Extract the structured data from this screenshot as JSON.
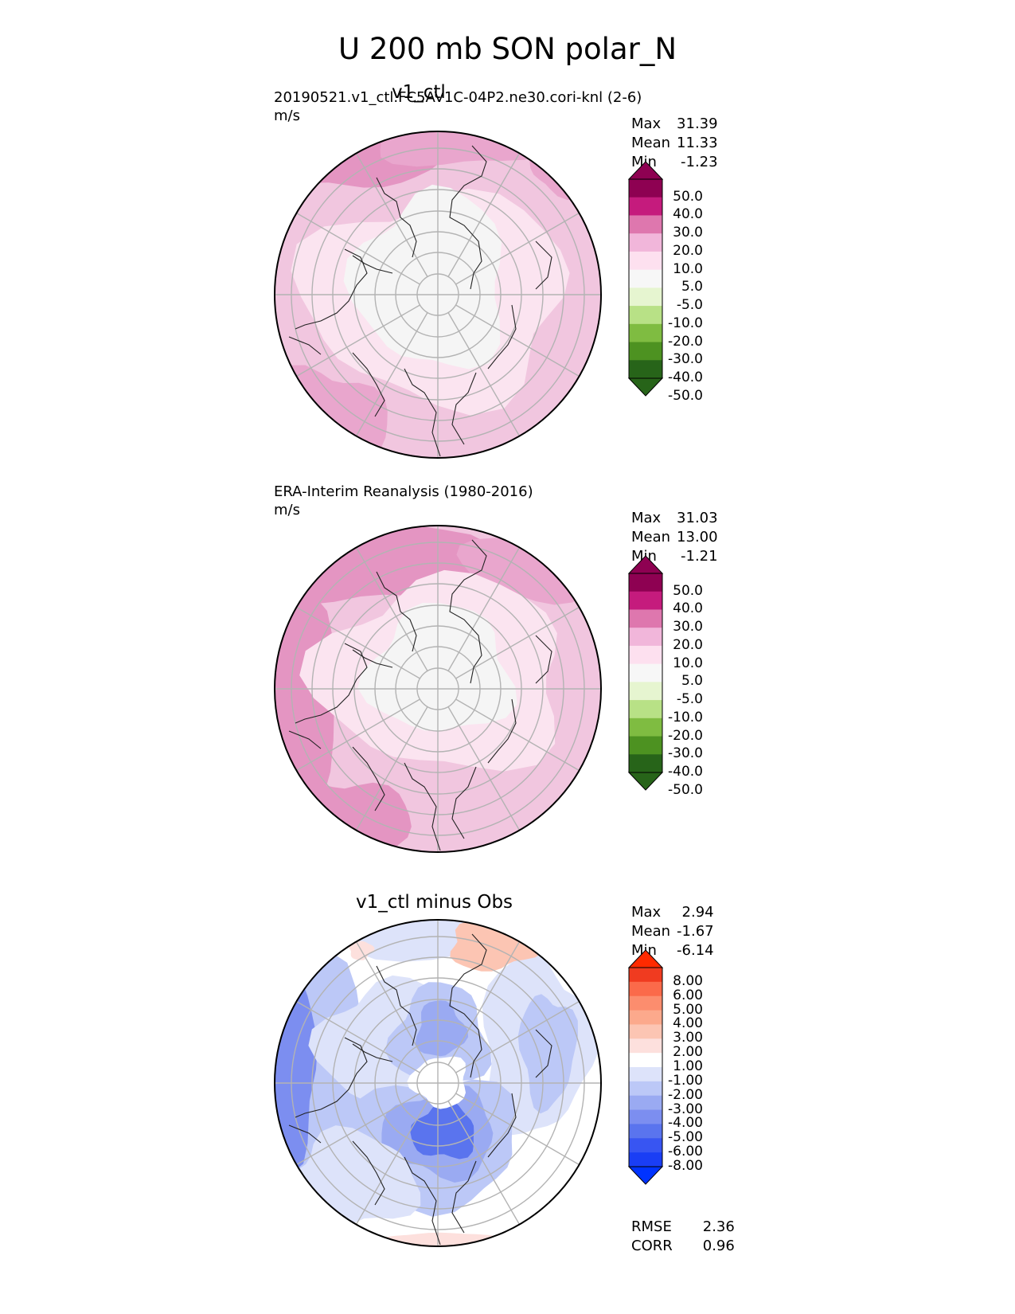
{
  "figure_title": "U 200 mb SON polar_N",
  "chart_data": [
    {
      "type": "polar-contour",
      "title": "v1_ctl",
      "subtitle": "20190521.v1_ctl.FC5AV1C-04P2.ne30.cori-knl (2-6)",
      "units": "m/s",
      "stats": [
        {
          "label": "Max",
          "value": "31.39"
        },
        {
          "label": "Mean",
          "value": "11.33"
        },
        {
          "label": "Min",
          "value": "-1.23"
        }
      ],
      "colorbar_levels": [
        "50.0",
        "40.0",
        "30.0",
        "20.0",
        "10.0",
        "5.0",
        "-5.0",
        "-10.0",
        "-20.0",
        "-30.0",
        "-40.0",
        "-50.0"
      ],
      "colorbar_colors": [
        "#8e0152",
        "#c51b7d",
        "#de77ae",
        "#f1b6da",
        "#fde0ef",
        "#f7f7f7",
        "#e6f5d0",
        "#b8e186",
        "#7fbc41",
        "#4d9221",
        "#276419"
      ],
      "extend_colors": {
        "max": "#8e0152",
        "min": "#276419"
      }
    },
    {
      "type": "polar-contour",
      "title": "",
      "subtitle": "ERA-Interim Reanalysis (1980-2016)",
      "units": "m/s",
      "stats": [
        {
          "label": "Max",
          "value": "31.03"
        },
        {
          "label": "Mean",
          "value": "13.00"
        },
        {
          "label": "Min",
          "value": "-1.21"
        }
      ],
      "colorbar_levels": [
        "50.0",
        "40.0",
        "30.0",
        "20.0",
        "10.0",
        "5.0",
        "-5.0",
        "-10.0",
        "-20.0",
        "-30.0",
        "-40.0",
        "-50.0"
      ],
      "colorbar_colors": [
        "#8e0152",
        "#c51b7d",
        "#de77ae",
        "#f1b6da",
        "#fde0ef",
        "#f7f7f7",
        "#e6f5d0",
        "#b8e186",
        "#7fbc41",
        "#4d9221",
        "#276419"
      ],
      "extend_colors": {
        "max": "#8e0152",
        "min": "#276419"
      }
    },
    {
      "type": "polar-contour",
      "title": "v1_ctl minus Obs",
      "subtitle": "",
      "units": "",
      "stats": [
        {
          "label": "Max",
          "value": "2.94"
        },
        {
          "label": "Mean",
          "value": "-1.67"
        },
        {
          "label": "Min",
          "value": "-6.14"
        }
      ],
      "colorbar_levels": [
        "8.00",
        "6.00",
        "5.00",
        "4.00",
        "3.00",
        "2.00",
        "1.00",
        "-1.00",
        "-2.00",
        "-3.00",
        "-4.00",
        "-5.00",
        "-6.00",
        "-8.00"
      ],
      "colorbar_colors": [
        "#f03b20",
        "#fb6a4a",
        "#fc8d6e",
        "#fca98c",
        "#fcc5b3",
        "#fde0dd",
        "#ffffff",
        "#dde3fa",
        "#bcc8f7",
        "#9aaaf2",
        "#7c8ef0",
        "#5a74ee",
        "#3855f2",
        "#1a3ef5"
      ],
      "extend_colors": {
        "max": "#ff2a00",
        "min": "#0033ff"
      },
      "metrics": [
        {
          "label": "RMSE",
          "value": "2.36"
        },
        {
          "label": "CORR",
          "value": "0.96"
        }
      ]
    }
  ]
}
